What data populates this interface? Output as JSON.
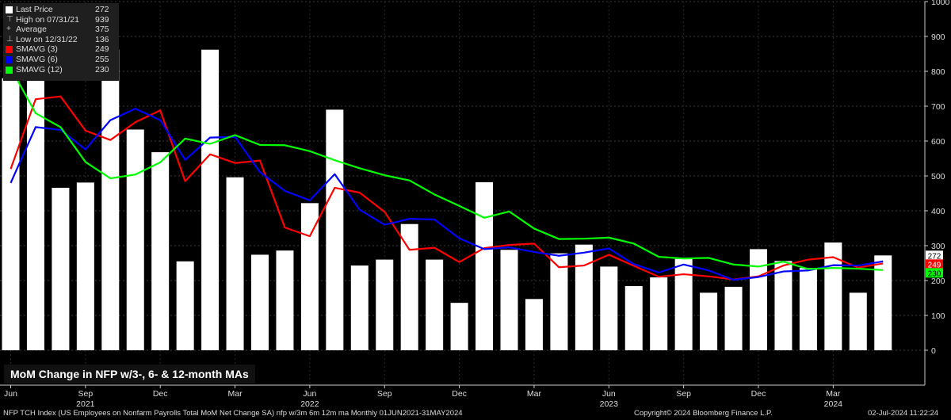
{
  "title": "MoM Change in NFP w/3-, 6- & 12-month MAs",
  "legend": [
    {
      "label": "Last Price",
      "value": "272",
      "kind": "box",
      "color": "#ffffff"
    },
    {
      "label": "High on 07/31/21",
      "value": "939",
      "kind": "high"
    },
    {
      "label": "Average",
      "value": "375",
      "kind": "avg"
    },
    {
      "label": "Low on 12/31/22",
      "value": "136",
      "kind": "low"
    },
    {
      "label": "SMAVG (3)",
      "value": "249",
      "kind": "box",
      "color": "#ff0000"
    },
    {
      "label": "SMAVG (6)",
      "value": "255",
      "kind": "box",
      "color": "#0000ff"
    },
    {
      "label": "SMAVG (12)",
      "value": "230",
      "kind": "box",
      "color": "#00ff00"
    }
  ],
  "footer": {
    "left": "NFP TCH Index (US Employees on Nonfarm Payrolls Total MoM Net Change SA) nfp w/3m 6m 12m ma  Monthly 01JUN2021-31MAY2024",
    "center": "Copyright© 2024 Bloomberg Finance L.P.",
    "right": "02-Jul-2024 11:22:24"
  },
  "chart_data": {
    "type": "bar",
    "ylim": [
      -100,
      1000
    ],
    "yticks": [
      0,
      100,
      200,
      300,
      400,
      500,
      600,
      700,
      800,
      900,
      1000
    ],
    "x": [
      "2021-06",
      "2021-07",
      "2021-08",
      "2021-09",
      "2021-10",
      "2021-11",
      "2021-12",
      "2022-01",
      "2022-02",
      "2022-03",
      "2022-04",
      "2022-05",
      "2022-06",
      "2022-07",
      "2022-08",
      "2022-09",
      "2022-10",
      "2022-11",
      "2022-12",
      "2023-01",
      "2023-02",
      "2023-03",
      "2023-04",
      "2023-05",
      "2023-06",
      "2023-07",
      "2023-08",
      "2023-09",
      "2023-10",
      "2023-11",
      "2023-12",
      "2024-01",
      "2024-02",
      "2024-03",
      "2024-04",
      "2024-05"
    ],
    "month_ticks": [
      {
        "label": "Jun",
        "i": 0
      },
      {
        "label": "Sep",
        "i": 3
      },
      {
        "label": "Dec",
        "i": 6
      },
      {
        "label": "Mar",
        "i": 9
      },
      {
        "label": "Jun",
        "i": 12
      },
      {
        "label": "Sep",
        "i": 15
      },
      {
        "label": "Dec",
        "i": 18
      },
      {
        "label": "Mar",
        "i": 21
      },
      {
        "label": "Jun",
        "i": 24
      },
      {
        "label": "Sep",
        "i": 27
      },
      {
        "label": "Dec",
        "i": 30
      },
      {
        "label": "Mar",
        "i": 33
      }
    ],
    "year_ticks": [
      {
        "label": "2021",
        "i": 3
      },
      {
        "label": "2022",
        "i": 12
      },
      {
        "label": "2023",
        "i": 24
      },
      {
        "label": "2024",
        "i": 33
      }
    ],
    "series": [
      {
        "name": "Last Price",
        "kind": "bar",
        "color": "#ffffff",
        "values": [
          780,
          939,
          466,
          481,
          862,
          633,
          568,
          255,
          862,
          496,
          274,
          286,
          422,
          690,
          243,
          260,
          362,
          260,
          136,
          482,
          288,
          147,
          278,
          303,
          240,
          184,
          209,
          262,
          165,
          182,
          290,
          256,
          236,
          309,
          165,
          272
        ]
      },
      {
        "name": "SMAVG (3)",
        "kind": "line",
        "color": "#ff0000",
        "values": [
          520,
          720,
          728,
          630,
          603,
          654,
          688,
          485,
          562,
          537,
          544,
          352,
          327,
          466,
          452,
          397,
          288,
          294,
          253,
          293,
          302,
          306,
          238,
          243,
          274,
          242,
          211,
          218,
          212,
          203,
          212,
          243,
          260,
          267,
          237,
          249
        ]
      },
      {
        "name": "SMAVG (6)",
        "kind": "line",
        "color": "#0000ff",
        "values": [
          480,
          640,
          632,
          576,
          660,
          693,
          660,
          546,
          610,
          612,
          511,
          457,
          430,
          505,
          403,
          360,
          377,
          375,
          321,
          290,
          295,
          282,
          271,
          280,
          292,
          247,
          223,
          246,
          229,
          202,
          210,
          226,
          229,
          244,
          243,
          255
        ]
      },
      {
        "name": "SMAVG (12)",
        "kind": "line",
        "color": "#00ff00",
        "values": [
          810,
          680,
          640,
          540,
          493,
          504,
          539,
          607,
          592,
          617,
          589,
          588,
          571,
          545,
          522,
          502,
          487,
          447,
          414,
          380,
          398,
          349,
          319,
          320,
          323,
          306,
          268,
          263,
          265,
          246,
          240,
          254,
          233,
          236,
          234,
          230
        ]
      }
    ],
    "right_labels": [
      {
        "value": "272",
        "y": 272,
        "color": "#ffffff",
        "text_color": "#000000"
      },
      {
        "value": "249",
        "y": 249,
        "color": "#ff0000",
        "text_color": "#ffffff"
      },
      {
        "value": "230",
        "y": 230,
        "color": "#00ff00",
        "text_color": "#000000"
      }
    ]
  }
}
